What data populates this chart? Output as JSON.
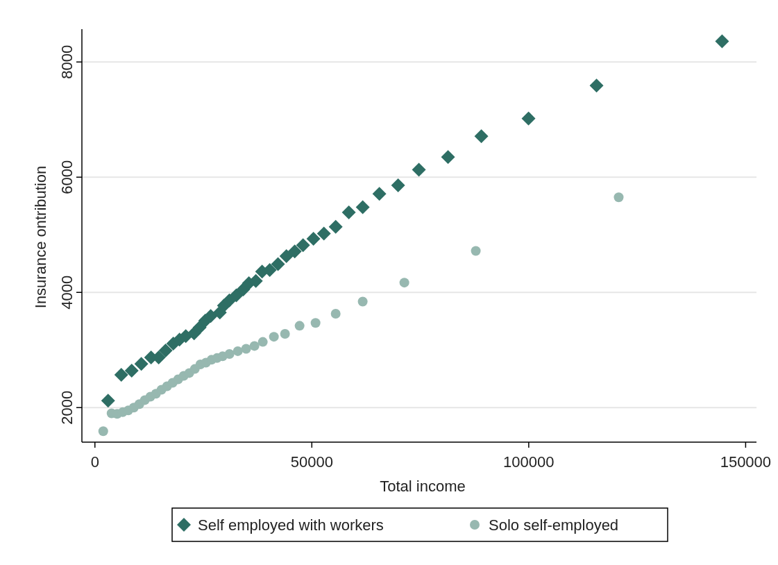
{
  "chart_data": {
    "type": "scatter",
    "xlabel": "Total income",
    "ylabel": "Insurance ontribution",
    "xlim": [
      -3000,
      152500
    ],
    "ylim": [
      1400,
      8570
    ],
    "xticks": [
      0,
      50000,
      100000,
      150000
    ],
    "yticks": [
      2000,
      4000,
      6000,
      8000
    ],
    "grid": "y",
    "legend": "bottom",
    "series": [
      {
        "name": "Self employed with workers",
        "color": "#2e6e64",
        "marker": "diamond",
        "x": [
          3040,
          6080,
          8480,
          10700,
          12950,
          14700,
          16300,
          18070,
          19500,
          20950,
          22870,
          24150,
          25430,
          26700,
          28800,
          29750,
          31000,
          32600,
          34200,
          35500,
          37100,
          38540,
          40300,
          42200,
          44140,
          46060,
          47980,
          50370,
          52780,
          55500,
          58530,
          61730,
          65570,
          69890,
          74680,
          81400,
          89080,
          99950,
          115630,
          144570
        ],
        "values": [
          2120,
          2570,
          2640,
          2760,
          2870,
          2870,
          2990,
          3110,
          3180,
          3240,
          3290,
          3390,
          3510,
          3590,
          3650,
          3770,
          3860,
          3950,
          4050,
          4160,
          4200,
          4360,
          4390,
          4490,
          4630,
          4710,
          4820,
          4930,
          5020,
          5140,
          5390,
          5480,
          5710,
          5860,
          6130,
          6350,
          6710,
          7020,
          7590,
          8360
        ]
      },
      {
        "name": "Solo self-employed",
        "color": "#97b8b0",
        "marker": "circle",
        "x": [
          1920,
          3840,
          5120,
          6400,
          7680,
          8960,
          10240,
          11510,
          12790,
          14070,
          15350,
          16630,
          17910,
          19190,
          20470,
          21750,
          23030,
          24310,
          25590,
          26870,
          28150,
          29430,
          31020,
          32940,
          34860,
          36780,
          38700,
          41260,
          43820,
          47180,
          50860,
          55500,
          61730,
          71330,
          87800,
          120740
        ],
        "values": [
          1590,
          1900,
          1890,
          1920,
          1950,
          2000,
          2060,
          2130,
          2190,
          2240,
          2310,
          2370,
          2430,
          2490,
          2550,
          2600,
          2670,
          2750,
          2780,
          2830,
          2860,
          2890,
          2930,
          2980,
          3020,
          3070,
          3140,
          3230,
          3280,
          3420,
          3470,
          3630,
          3840,
          4170,
          4720,
          5650
        ]
      }
    ]
  }
}
